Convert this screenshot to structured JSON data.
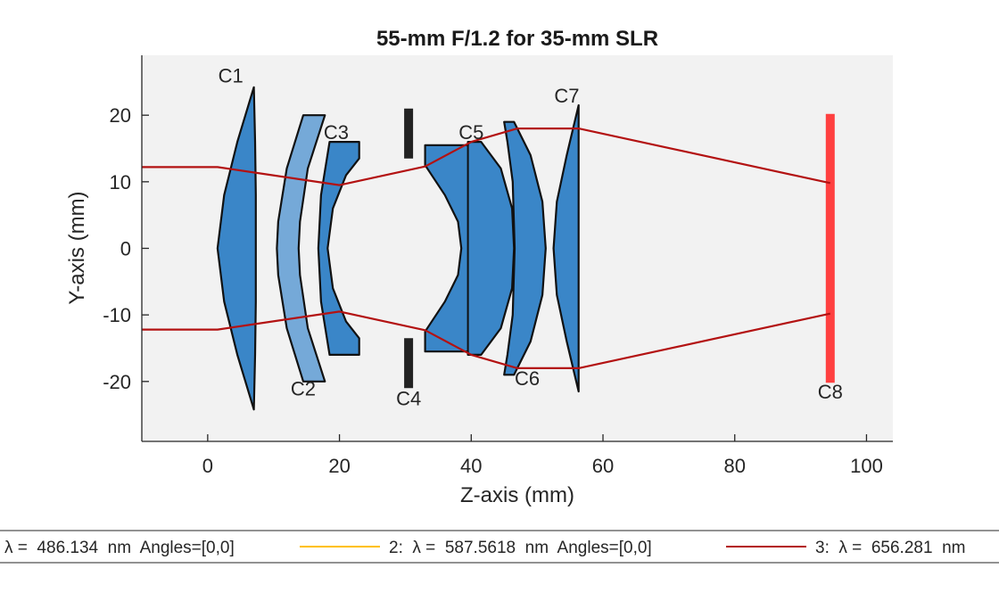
{
  "chart_data": {
    "type": "lens_layout",
    "title": "55-mm F/1.2 for 35-mm SLR",
    "xlabel": "Z-axis (mm)",
    "ylabel": "Y-axis (mm)",
    "xlim": [
      -10,
      104
    ],
    "ylim": [
      -29,
      29
    ],
    "xticks": [
      0,
      20,
      40,
      60,
      80,
      100
    ],
    "yticks": [
      -20,
      -10,
      0,
      10,
      20
    ],
    "grid": false,
    "background_color": "#f2f2f2",
    "components": [
      {
        "label": "C1",
        "kind": "lens",
        "color": "#3a86c8",
        "outline": [
          [
            7,
            24.2
          ],
          [
            4.5,
            16
          ],
          [
            2.5,
            8
          ],
          [
            1.5,
            0
          ],
          [
            2.5,
            -8
          ],
          [
            4.5,
            -16
          ],
          [
            7,
            -24.2
          ],
          [
            7.2,
            -16
          ],
          [
            7.3,
            -8
          ],
          [
            7.3,
            0
          ],
          [
            7.3,
            8
          ],
          [
            7.2,
            16
          ]
        ],
        "label_at": [
          3.5,
          26
        ]
      },
      {
        "label": "C2",
        "kind": "lens",
        "color": "#75a9d8",
        "outline": [
          [
            14.5,
            20
          ],
          [
            17.8,
            20
          ],
          [
            15.2,
            12
          ],
          [
            14,
            4
          ],
          [
            13.8,
            0
          ],
          [
            14,
            -4
          ],
          [
            15.2,
            -12
          ],
          [
            17.8,
            -20
          ],
          [
            14.5,
            -20
          ],
          [
            12,
            -12
          ],
          [
            10.7,
            -4
          ],
          [
            10.5,
            0
          ],
          [
            10.7,
            4
          ],
          [
            12,
            12
          ]
        ],
        "label_at": [
          14.5,
          -21
        ]
      },
      {
        "label": "C3",
        "kind": "lens",
        "color": "#3a86c8",
        "outline": [
          [
            18.5,
            16
          ],
          [
            23,
            16
          ],
          [
            23,
            13.5
          ],
          [
            21,
            11
          ],
          [
            19,
            6
          ],
          [
            18.2,
            0
          ],
          [
            19,
            -6
          ],
          [
            21,
            -11
          ],
          [
            23,
            -13.5
          ],
          [
            23,
            -16
          ],
          [
            18.5,
            -16
          ],
          [
            17.2,
            -8
          ],
          [
            16.8,
            0
          ],
          [
            17.2,
            8
          ]
        ],
        "label_at": [
          19.5,
          17.5
        ]
      },
      {
        "label": "C4",
        "kind": "stop",
        "color": "#222222",
        "segments": [
          [
            [
              30.5,
              21
            ],
            [
              30.5,
              13.5
            ]
          ],
          [
            [
              30.5,
              -13.5
            ],
            [
              30.5,
              -21
            ]
          ]
        ],
        "label_at": [
          30.5,
          -22.5
        ]
      },
      {
        "label": "C5",
        "kind": "lens",
        "color": "#3a86c8",
        "outline": [
          [
            33,
            15.5
          ],
          [
            39.5,
            15.5
          ],
          [
            39.5,
            16
          ],
          [
            41.5,
            16
          ],
          [
            44.5,
            12
          ],
          [
            46.2,
            6
          ],
          [
            46.5,
            0
          ],
          [
            46.2,
            -6
          ],
          [
            44.5,
            -12
          ],
          [
            41.5,
            -16
          ],
          [
            39.5,
            -16
          ],
          [
            39.5,
            -15.5
          ],
          [
            33,
            -15.5
          ],
          [
            33,
            -12.5
          ],
          [
            36,
            -8
          ],
          [
            38,
            -4
          ],
          [
            38.5,
            0
          ],
          [
            38,
            4
          ],
          [
            36,
            8
          ],
          [
            33,
            12.5
          ]
        ],
        "inner_line": [
          [
            39.5,
            16
          ],
          [
            39.5,
            -16
          ]
        ],
        "label_at": [
          40,
          17.5
        ]
      },
      {
        "label": "C6",
        "kind": "lens",
        "color": "#3a86c8",
        "outline": [
          [
            45,
            19
          ],
          [
            46.5,
            19
          ],
          [
            49,
            14
          ],
          [
            50.8,
            7
          ],
          [
            51.3,
            0
          ],
          [
            50.8,
            -7
          ],
          [
            49,
            -14
          ],
          [
            46.5,
            -19
          ],
          [
            45,
            -19
          ],
          [
            45.5,
            -16
          ],
          [
            46.3,
            -10
          ],
          [
            46.6,
            0
          ],
          [
            46.3,
            10
          ],
          [
            45.5,
            16
          ]
        ],
        "label_at": [
          48.5,
          -19.5
        ]
      },
      {
        "label": "C7",
        "kind": "lens",
        "color": "#3a86c8",
        "outline": [
          [
            56.3,
            21.5
          ],
          [
            54.5,
            14
          ],
          [
            53,
            7
          ],
          [
            52.5,
            0
          ],
          [
            53,
            -7
          ],
          [
            54.5,
            -14
          ],
          [
            56.3,
            -21.5
          ],
          [
            56.3,
            -14
          ],
          [
            56.3,
            0
          ],
          [
            56.3,
            14
          ]
        ],
        "label_at": [
          54.5,
          23
        ]
      },
      {
        "label": "C8",
        "kind": "image_plane",
        "color": "#ff4040",
        "segment": [
          [
            94.5,
            20.2
          ],
          [
            94.5,
            -20.2
          ]
        ],
        "label_at": [
          94.5,
          -21.5
        ]
      }
    ],
    "ray_series": [
      {
        "color": "#b31212",
        "points": [
          [
            -10,
            12.2
          ],
          [
            1.5,
            12.2
          ],
          [
            20,
            9.5
          ],
          [
            33,
            12.3
          ],
          [
            40,
            16
          ],
          [
            47,
            18
          ],
          [
            56.3,
            18
          ],
          [
            94.5,
            9.8
          ]
        ]
      },
      {
        "color": "#b31212",
        "points": [
          [
            -10,
            -12.2
          ],
          [
            1.5,
            -12.2
          ],
          [
            20,
            -9.5
          ],
          [
            33,
            -12.3
          ],
          [
            40,
            -16
          ],
          [
            47,
            -18
          ],
          [
            56.3,
            -18
          ],
          [
            94.5,
            -9.8
          ]
        ]
      }
    ],
    "legend": {
      "placement": "bottom",
      "entries": [
        {
          "text": "λ =  486.134  nm  Angles=[0,0]",
          "color": ""
        },
        {
          "text": "2:  λ =  587.5618  nm  Angles=[0,0]",
          "color": "#ffc000"
        },
        {
          "text": "3:  λ =  656.281  nm",
          "color": "#b31212"
        }
      ]
    }
  }
}
